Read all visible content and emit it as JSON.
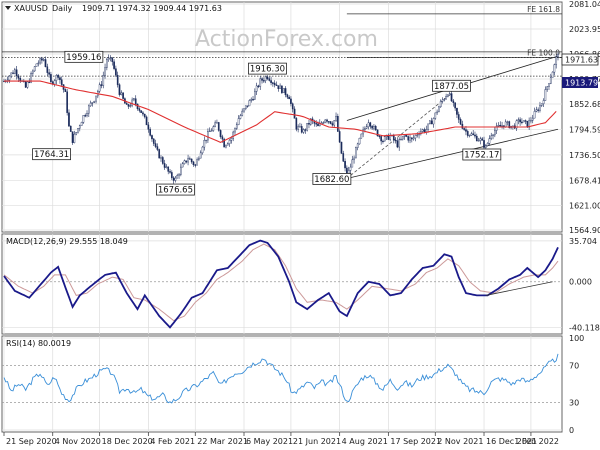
{
  "chart_data": [
    {
      "type": "candlestick",
      "symbol": "XAUUSD",
      "timeframe": "Daily",
      "ohlc_readout": "1909.71 1974.32 1909.44 1971.63",
      "watermark": "ActionForex.com",
      "ylim": [
        1564.9,
        2081.0
      ],
      "y_ticks": [
        "2081.04",
        "2023.95",
        "1966.86",
        "1909.77",
        "1852.68",
        "1794.59",
        "1736.50",
        "1678.41",
        "1621.00",
        "1564.90"
      ],
      "current_price": "1971.63",
      "secondary_price": "1913.79",
      "x_ticks": [
        "21 Sep 2020",
        "4 Nov 2020",
        "18 Dec 2020",
        "4 Feb 2021",
        "22 Mar 2021",
        "6 May 2021",
        "21 Jun 2021",
        "4 Aug 2021",
        "17 Sep 2021",
        "2 Nov 2021",
        "16 Dec 2021",
        "1 Feb 2022"
      ],
      "price_path": [
        [
          0,
          1905
        ],
        [
          6,
          1930
        ],
        [
          12,
          1890
        ],
        [
          18,
          1945
        ],
        [
          22,
          1955
        ],
        [
          26,
          1900
        ],
        [
          30,
          1920
        ],
        [
          34,
          1875
        ],
        [
          36,
          1800
        ],
        [
          38,
          1770
        ],
        [
          44,
          1825
        ],
        [
          50,
          1865
        ],
        [
          54,
          1900
        ],
        [
          57,
          1955
        ],
        [
          60,
          1950
        ],
        [
          64,
          1880
        ],
        [
          68,
          1845
        ],
        [
          72,
          1860
        ],
        [
          76,
          1835
        ],
        [
          80,
          1800
        ],
        [
          84,
          1750
        ],
        [
          88,
          1720
        ],
        [
          92,
          1690
        ],
        [
          95,
          1680
        ],
        [
          98,
          1705
        ],
        [
          102,
          1730
        ],
        [
          106,
          1712
        ],
        [
          110,
          1760
        ],
        [
          114,
          1790
        ],
        [
          118,
          1808
        ],
        [
          122,
          1760
        ],
        [
          126,
          1775
        ],
        [
          130,
          1820
        ],
        [
          134,
          1845
        ],
        [
          138,
          1870
        ],
        [
          142,
          1905
        ],
        [
          146,
          1916
        ],
        [
          150,
          1900
        ],
        [
          154,
          1885
        ],
        [
          158,
          1870
        ],
        [
          162,
          1800
        ],
        [
          166,
          1790
        ],
        [
          170,
          1815
        ],
        [
          174,
          1800
        ],
        [
          178,
          1820
        ],
        [
          182,
          1810
        ],
        [
          184,
          1820
        ],
        [
          186,
          1760
        ],
        [
          188,
          1720
        ],
        [
          190,
          1685
        ],
        [
          194,
          1735
        ],
        [
          198,
          1780
        ],
        [
          202,
          1815
        ],
        [
          206,
          1790
        ],
        [
          210,
          1770
        ],
        [
          214,
          1780
        ],
        [
          218,
          1760
        ],
        [
          222,
          1780
        ],
        [
          226,
          1770
        ],
        [
          230,
          1790
        ],
        [
          234,
          1795
        ],
        [
          238,
          1820
        ],
        [
          242,
          1855
        ],
        [
          246,
          1880
        ],
        [
          248,
          1860
        ],
        [
          252,
          1815
        ],
        [
          256,
          1790
        ],
        [
          260,
          1780
        ],
        [
          264,
          1770
        ],
        [
          267,
          1753
        ],
        [
          270,
          1785
        ],
        [
          274,
          1800
        ],
        [
          278,
          1808
        ],
        [
          282,
          1800
        ],
        [
          286,
          1815
        ],
        [
          290,
          1805
        ],
        [
          294,
          1830
        ],
        [
          298,
          1855
        ],
        [
          302,
          1905
        ],
        [
          305,
          1940
        ],
        [
          307,
          1972
        ]
      ],
      "ma_path": [
        [
          0,
          1905
        ],
        [
          20,
          1905
        ],
        [
          40,
          1885
        ],
        [
          60,
          1870
        ],
        [
          80,
          1840
        ],
        [
          100,
          1800
        ],
        [
          120,
          1765
        ],
        [
          140,
          1805
        ],
        [
          150,
          1835
        ],
        [
          165,
          1825
        ],
        [
          180,
          1800
        ],
        [
          195,
          1795
        ],
        [
          210,
          1780
        ],
        [
          230,
          1785
        ],
        [
          250,
          1800
        ],
        [
          270,
          1800
        ],
        [
          290,
          1800
        ],
        [
          300,
          1810
        ],
        [
          307,
          1840
        ]
      ],
      "channel": {
        "lower": [
          [
            190,
            1682.6
          ],
          [
            307,
            1795
          ]
        ],
        "upper": [
          [
            190,
            1815
          ],
          [
            307,
            1962
          ]
        ]
      },
      "dashed_trend": [
        [
          190,
          1682.6
        ],
        [
          248,
          1877.05
        ]
      ],
      "hlines": [
        {
          "value": 1916.3,
          "style": "dotted"
        },
        {
          "value": 1971.63,
          "style": "solid"
        },
        {
          "value": 1959.16,
          "style": "dotted"
        }
      ],
      "fe_levels": [
        {
          "label": "FE 161.8",
          "value": 2058.5
        },
        {
          "label": "FE 100.0",
          "value": 1958.5
        }
      ],
      "annotations": [
        {
          "label": "1959.16",
          "x": 57,
          "value": 1959.16
        },
        {
          "label": "1916.30",
          "x": 146,
          "value": 1916.3
        },
        {
          "label": "1877.05",
          "x": 248,
          "value": 1877.05
        },
        {
          "label": "1764.31",
          "x": 38,
          "value": 1764.31
        },
        {
          "label": "1676.65",
          "x": 95,
          "value": 1676.65
        },
        {
          "label": "1682.60",
          "x": 190,
          "value": 1682.6
        },
        {
          "label": "1752.17",
          "x": 267,
          "value": 1752.17
        }
      ],
      "n_bars": 308
    },
    {
      "type": "line",
      "name": "MACD(12,26,9)",
      "readout": "MACD(12,26,9) 29.555 18.049",
      "ylim": [
        -44,
        40
      ],
      "y_ticks": [
        "35.704",
        "0.000",
        "-40.118"
      ],
      "macd_path": [
        [
          0,
          5
        ],
        [
          6,
          -8
        ],
        [
          14,
          -14
        ],
        [
          20,
          -3
        ],
        [
          26,
          8
        ],
        [
          30,
          13
        ],
        [
          34,
          -5
        ],
        [
          38,
          -22
        ],
        [
          42,
          -12
        ],
        [
          48,
          -4
        ],
        [
          56,
          6
        ],
        [
          62,
          8
        ],
        [
          68,
          -10
        ],
        [
          74,
          -24
        ],
        [
          78,
          -12
        ],
        [
          86,
          -30
        ],
        [
          92,
          -40
        ],
        [
          98,
          -28
        ],
        [
          104,
          -14
        ],
        [
          110,
          -10
        ],
        [
          114,
          0
        ],
        [
          118,
          10
        ],
        [
          124,
          12
        ],
        [
          130,
          22
        ],
        [
          136,
          32
        ],
        [
          142,
          36
        ],
        [
          146,
          34
        ],
        [
          152,
          22
        ],
        [
          158,
          0
        ],
        [
          162,
          -18
        ],
        [
          168,
          -24
        ],
        [
          174,
          -16
        ],
        [
          180,
          -10
        ],
        [
          186,
          -26
        ],
        [
          190,
          -30
        ],
        [
          196,
          -10
        ],
        [
          202,
          0
        ],
        [
          208,
          -2
        ],
        [
          214,
          -12
        ],
        [
          220,
          -10
        ],
        [
          226,
          2
        ],
        [
          232,
          12
        ],
        [
          238,
          14
        ],
        [
          244,
          24
        ],
        [
          248,
          22
        ],
        [
          252,
          4
        ],
        [
          256,
          -10
        ],
        [
          262,
          -12
        ],
        [
          268,
          -12
        ],
        [
          274,
          -6
        ],
        [
          280,
          2
        ],
        [
          286,
          6
        ],
        [
          290,
          12
        ],
        [
          296,
          4
        ],
        [
          300,
          10
        ],
        [
          304,
          20
        ],
        [
          307,
          30
        ]
      ],
      "signal_path": [
        [
          0,
          6
        ],
        [
          8,
          -4
        ],
        [
          16,
          -10
        ],
        [
          22,
          -4
        ],
        [
          28,
          6
        ],
        [
          34,
          6
        ],
        [
          40,
          -12
        ],
        [
          46,
          -10
        ],
        [
          52,
          -2
        ],
        [
          60,
          4
        ],
        [
          66,
          2
        ],
        [
          72,
          -14
        ],
        [
          78,
          -16
        ],
        [
          86,
          -24
        ],
        [
          94,
          -34
        ],
        [
          100,
          -30
        ],
        [
          106,
          -18
        ],
        [
          112,
          -10
        ],
        [
          118,
          2
        ],
        [
          124,
          8
        ],
        [
          132,
          18
        ],
        [
          138,
          28
        ],
        [
          144,
          33
        ],
        [
          150,
          28
        ],
        [
          156,
          14
        ],
        [
          162,
          -6
        ],
        [
          168,
          -18
        ],
        [
          176,
          -16
        ],
        [
          184,
          -18
        ],
        [
          190,
          -24
        ],
        [
          196,
          -16
        ],
        [
          204,
          -4
        ],
        [
          212,
          -6
        ],
        [
          220,
          -8
        ],
        [
          228,
          -2
        ],
        [
          234,
          8
        ],
        [
          240,
          12
        ],
        [
          246,
          20
        ],
        [
          252,
          14
        ],
        [
          258,
          0
        ],
        [
          264,
          -8
        ],
        [
          272,
          -10
        ],
        [
          280,
          -2
        ],
        [
          288,
          4
        ],
        [
          294,
          6
        ],
        [
          300,
          6
        ],
        [
          304,
          12
        ],
        [
          307,
          18
        ]
      ],
      "trendline": [
        [
          267,
          -12
        ],
        [
          304,
          0
        ]
      ]
    },
    {
      "type": "line",
      "name": "RSI(14)",
      "readout": "RSI(14) 80.0019",
      "ylim": [
        0,
        100
      ],
      "y_ticks": [
        "100",
        "70",
        "30",
        "0"
      ],
      "rsi_path": [
        [
          0,
          58
        ],
        [
          4,
          42
        ],
        [
          8,
          50
        ],
        [
          12,
          44
        ],
        [
          16,
          55
        ],
        [
          20,
          62
        ],
        [
          24,
          48
        ],
        [
          28,
          58
        ],
        [
          32,
          40
        ],
        [
          36,
          32
        ],
        [
          40,
          44
        ],
        [
          44,
          52
        ],
        [
          48,
          56
        ],
        [
          52,
          62
        ],
        [
          56,
          66
        ],
        [
          60,
          62
        ],
        [
          64,
          42
        ],
        [
          68,
          46
        ],
        [
          72,
          40
        ],
        [
          76,
          44
        ],
        [
          80,
          36
        ],
        [
          84,
          34
        ],
        [
          88,
          38
        ],
        [
          92,
          30
        ],
        [
          96,
          34
        ],
        [
          100,
          42
        ],
        [
          104,
          46
        ],
        [
          108,
          50
        ],
        [
          112,
          56
        ],
        [
          116,
          62
        ],
        [
          120,
          48
        ],
        [
          124,
          56
        ],
        [
          128,
          62
        ],
        [
          132,
          64
        ],
        [
          136,
          70
        ],
        [
          140,
          74
        ],
        [
          144,
          78
        ],
        [
          148,
          70
        ],
        [
          152,
          64
        ],
        [
          156,
          56
        ],
        [
          160,
          40
        ],
        [
          164,
          44
        ],
        [
          168,
          52
        ],
        [
          172,
          46
        ],
        [
          176,
          52
        ],
        [
          180,
          50
        ],
        [
          184,
          58
        ],
        [
          188,
          40
        ],
        [
          190,
          30
        ],
        [
          194,
          44
        ],
        [
          198,
          56
        ],
        [
          202,
          60
        ],
        [
          206,
          52
        ],
        [
          210,
          44
        ],
        [
          214,
          54
        ],
        [
          218,
          46
        ],
        [
          222,
          52
        ],
        [
          226,
          48
        ],
        [
          230,
          56
        ],
        [
          234,
          58
        ],
        [
          238,
          60
        ],
        [
          242,
          66
        ],
        [
          246,
          70
        ],
        [
          250,
          62
        ],
        [
          254,
          50
        ],
        [
          258,
          44
        ],
        [
          262,
          42
        ],
        [
          266,
          40
        ],
        [
          270,
          52
        ],
        [
          274,
          56
        ],
        [
          278,
          54
        ],
        [
          282,
          50
        ],
        [
          286,
          56
        ],
        [
          290,
          52
        ],
        [
          294,
          58
        ],
        [
          298,
          64
        ],
        [
          302,
          72
        ],
        [
          305,
          76
        ],
        [
          307,
          80
        ]
      ]
    }
  ]
}
